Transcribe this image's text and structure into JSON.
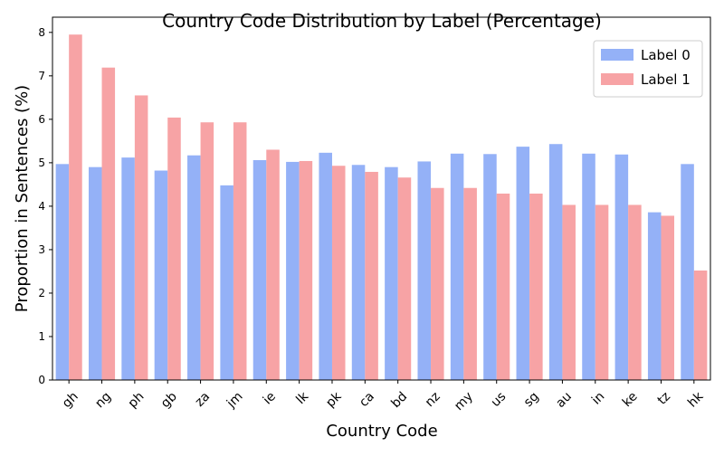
{
  "chart_data": {
    "type": "bar",
    "title": "Country Code Distribution by Label (Percentage)",
    "xlabel": "Country Code",
    "ylabel": "Proportion in Sentences (%)",
    "categories": [
      "gh",
      "ng",
      "ph",
      "gb",
      "za",
      "jm",
      "ie",
      "lk",
      "pk",
      "ca",
      "bd",
      "nz",
      "my",
      "us",
      "sg",
      "au",
      "in",
      "ke",
      "tz",
      "hk"
    ],
    "series": [
      {
        "name": "Label 0",
        "color": "#94b1f7",
        "values": [
          4.97,
          4.9,
          5.12,
          4.82,
          5.17,
          4.48,
          5.06,
          5.02,
          5.23,
          4.95,
          4.9,
          5.03,
          5.21,
          5.2,
          5.37,
          5.43,
          5.21,
          5.19,
          3.86,
          4.97
        ]
      },
      {
        "name": "Label 1",
        "color": "#f7a3a5",
        "values": [
          7.95,
          7.19,
          6.55,
          6.04,
          5.93,
          5.93,
          5.3,
          5.04,
          4.93,
          4.79,
          4.66,
          4.42,
          4.42,
          4.29,
          4.29,
          4.03,
          4.03,
          4.03,
          3.78,
          2.52
        ]
      }
    ],
    "ylim": [
      0,
      8.35
    ],
    "yticks": [
      0,
      1,
      2,
      3,
      4,
      5,
      6,
      7,
      8
    ],
    "grid": false,
    "legend_position": "top-right"
  }
}
